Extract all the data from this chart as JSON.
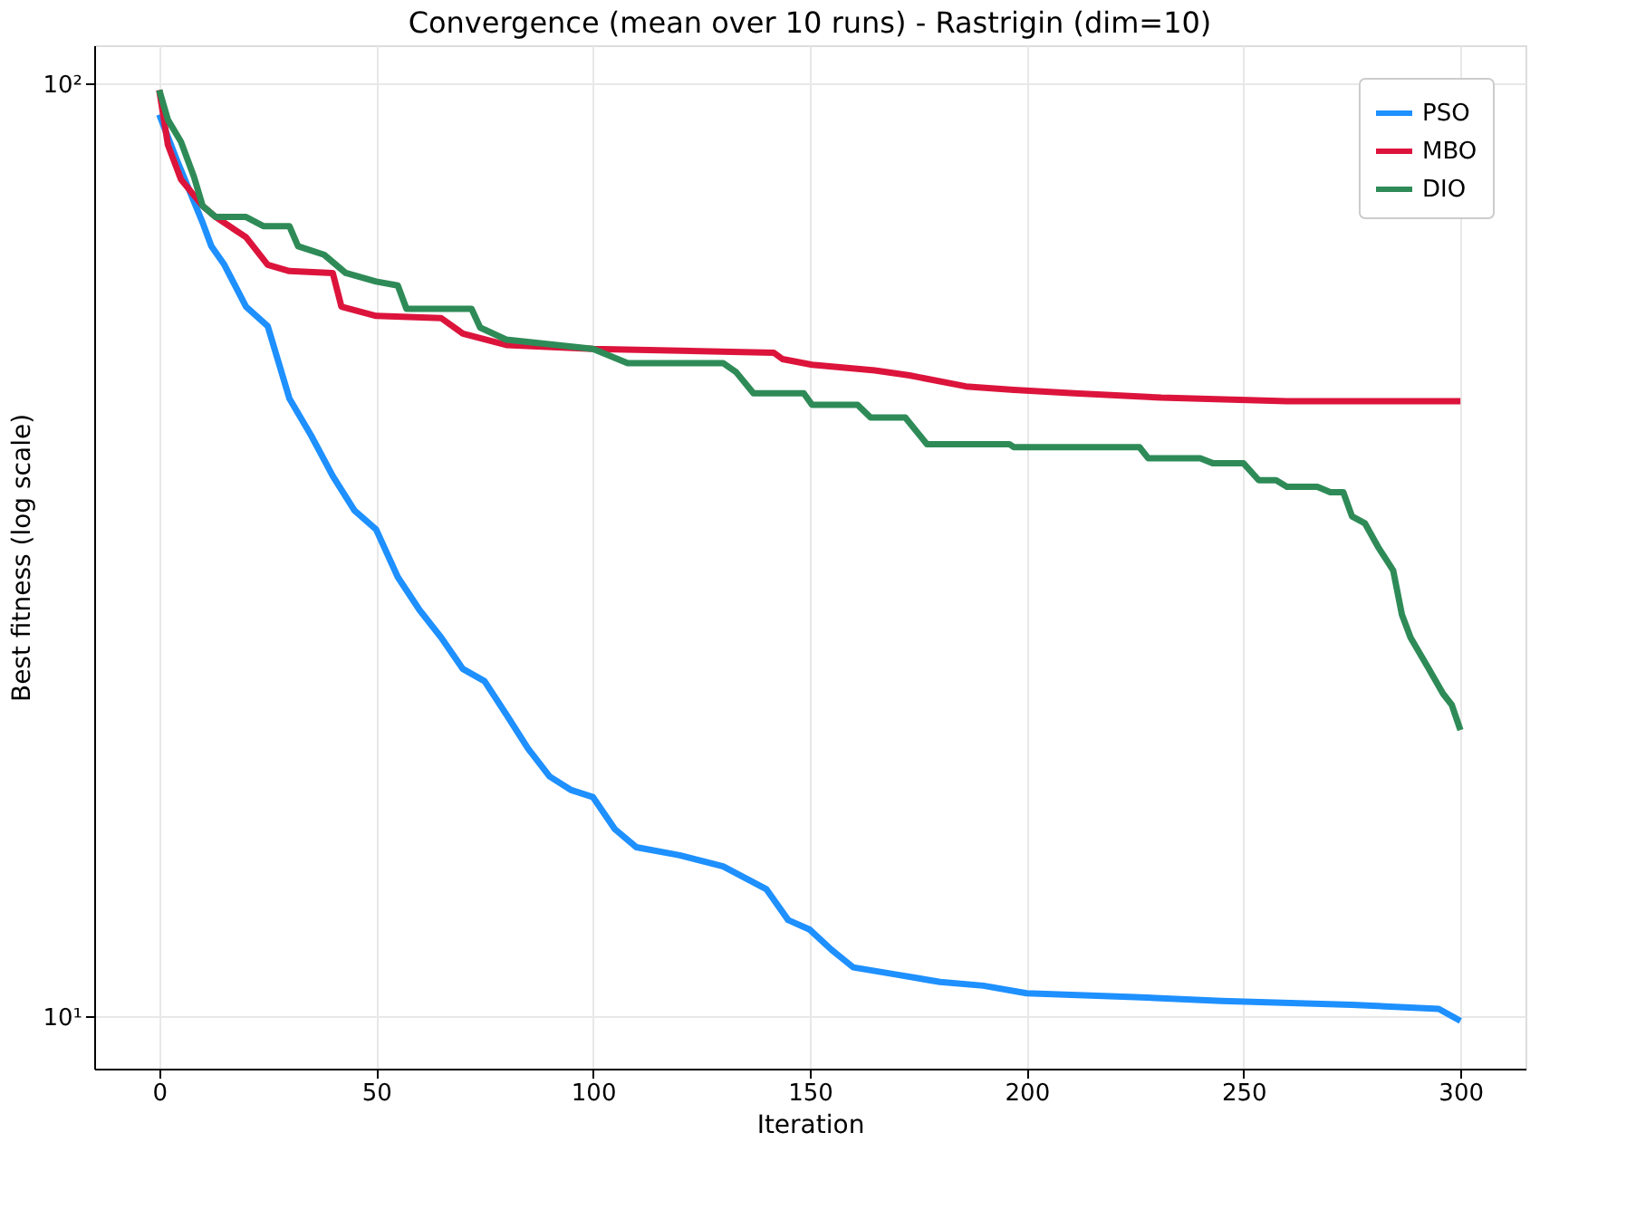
{
  "chart_data": {
    "type": "line",
    "title": "Convergence (mean over 10 runs) - Rastrigin (dim=10)",
    "xlabel": "Iteration",
    "ylabel": "Best fitness (log scale)",
    "xlim": [
      -15,
      315
    ],
    "xticks": [
      0,
      50,
      100,
      150,
      200,
      250,
      300
    ],
    "ylim": [
      8.8,
      110
    ],
    "yticks": [
      {
        "value": 10,
        "label": "10¹"
      },
      {
        "value": 100,
        "label": "10²"
      }
    ],
    "log": "y",
    "grid": true,
    "legend": "top right",
    "line_style": "solid",
    "marker": "none",
    "series": [
      {
        "name": "PSO",
        "color": "#1e90ff",
        "x": [
          0,
          4,
          10,
          12,
          15,
          20,
          25,
          30,
          35,
          40,
          45,
          50,
          55,
          60,
          65,
          70,
          75,
          80,
          85,
          90,
          95,
          100,
          105,
          110,
          120,
          130,
          140,
          145,
          150,
          155,
          160,
          170,
          180,
          190,
          200,
          225,
          245,
          275,
          295,
          300
        ],
        "values": [
          92.7,
          83,
          71,
          67,
          64,
          57.7,
          55,
          46,
          42,
          38,
          34.9,
          33.3,
          29.6,
          27.3,
          25.5,
          23.6,
          22.9,
          21.1,
          19.4,
          18.1,
          17.5,
          17.2,
          15.9,
          15.2,
          14.9,
          14.5,
          13.7,
          12.7,
          12.4,
          11.8,
          11.3,
          11.1,
          10.9,
          10.8,
          10.6,
          10.5,
          10.4,
          10.3,
          10.2,
          9.9
        ]
      },
      {
        "name": "MBO",
        "color": "#dc143c",
        "x": [
          0,
          2,
          5,
          10,
          13,
          20,
          25,
          30,
          40,
          42,
          50,
          65,
          70,
          80,
          100,
          141.7,
          143.7,
          150.5,
          165,
          173,
          186,
          197,
          211,
          231,
          260,
          300
        ],
        "values": [
          98.5,
          86,
          79,
          74,
          72,
          68.5,
          64,
          63,
          62.7,
          57.7,
          56.4,
          56.1,
          54,
          52.5,
          52,
          51.5,
          50.7,
          50,
          49.3,
          48.7,
          47.4,
          47,
          46.6,
          46.1,
          45.7,
          45.7
        ]
      },
      {
        "name": "DIO",
        "color": "#2e8b57",
        "x": [
          0,
          2,
          5,
          8,
          10,
          13,
          20,
          24,
          30,
          32,
          38,
          43,
          50,
          55,
          57,
          72,
          74,
          80,
          100,
          108,
          130,
          133,
          137,
          148.6,
          150.5,
          161,
          164,
          172,
          177,
          196,
          197,
          226,
          228,
          240,
          243,
          250,
          253.5,
          257.5,
          260,
          267,
          270,
          273,
          275,
          278,
          281,
          284.5,
          286.5,
          288.5,
          292.5,
          296,
          298,
          300
        ],
        "values": [
          98.5,
          91.5,
          86.7,
          79.5,
          74,
          72,
          72,
          70.4,
          70.4,
          67,
          65.6,
          62.7,
          61.4,
          60.8,
          57.4,
          57.4,
          54.8,
          53.2,
          52,
          50.2,
          50.2,
          49.1,
          46.6,
          46.6,
          45.3,
          45.3,
          43.9,
          43.9,
          41.1,
          41.1,
          40.8,
          40.8,
          39.7,
          39.7,
          39.2,
          39.2,
          37.6,
          37.6,
          37,
          37,
          36.5,
          36.5,
          34.4,
          33.8,
          31.9,
          30.1,
          27,
          25.5,
          23.7,
          22.2,
          21.6,
          20.3
        ]
      }
    ]
  }
}
